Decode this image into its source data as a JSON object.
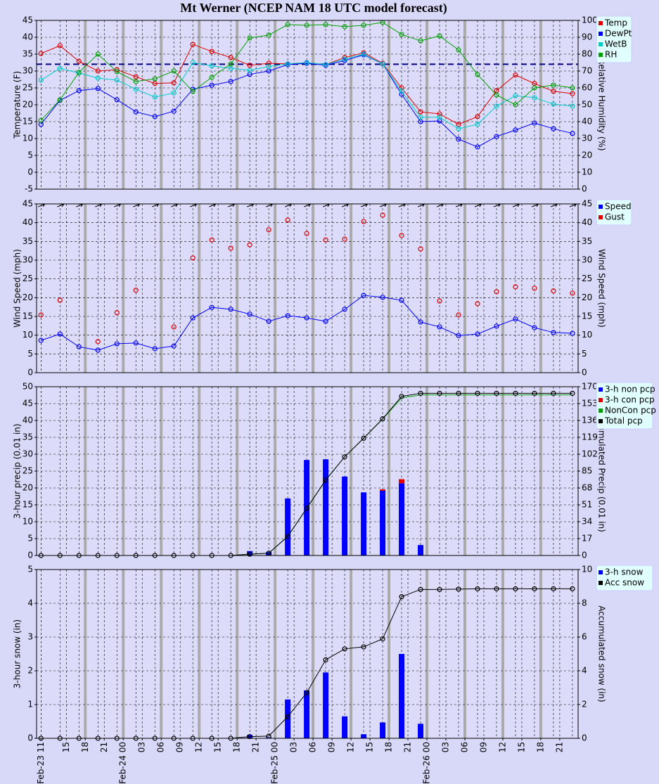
{
  "title": "Mt Werner (NCEP NAM 18 UTC model forecast)",
  "chart_data": [
    {
      "type": "line",
      "ylabel": "Temperature (F)",
      "y2label": "Relative Humidity (%)",
      "x": [
        0,
        3,
        6,
        9,
        12,
        15,
        18,
        21,
        24,
        27,
        30,
        33,
        36,
        39,
        42,
        45,
        48,
        51,
        54,
        57,
        60,
        63,
        66,
        69,
        72,
        75,
        78,
        81,
        84
      ],
      "xlim": [
        -0.7,
        84.9
      ],
      "ylim": [
        -5,
        45
      ],
      "yticks": [
        -5,
        0,
        5,
        10,
        15,
        20,
        25,
        30,
        35,
        40,
        45
      ],
      "y2lim": [
        0,
        100
      ],
      "y2ticks": [
        0,
        10,
        20,
        30,
        40,
        50,
        60,
        70,
        80,
        90,
        100
      ],
      "hline": 32,
      "hline_color": "#000080",
      "grid": true,
      "series": [
        {
          "name": "Temp",
          "color": "#e00000",
          "values": [
            35.2,
            37.5,
            32.9,
            30,
            30.4,
            28.3,
            26.3,
            26.5,
            37.9,
            35.8,
            34,
            31.7,
            32.3,
            32.1,
            32.5,
            31.9,
            34,
            35.4,
            32.3,
            25,
            17.9,
            17.3,
            14.2,
            16.5,
            24.2,
            28.8,
            26.3,
            24,
            23.3
          ]
        },
        {
          "name": "DewPt",
          "color": "#0000ff",
          "values": [
            14.2,
            21.3,
            24.2,
            24.8,
            21.5,
            17.9,
            16.5,
            18.1,
            24.6,
            25.8,
            26.9,
            29,
            30,
            31.9,
            32.3,
            31.7,
            33.1,
            34.8,
            32.1,
            23.1,
            15,
            15.2,
            9.8,
            7.5,
            10.6,
            12.5,
            14.6,
            12.9,
            11.5
          ]
        },
        {
          "name": "WetB",
          "color": "#00cccc",
          "values": [
            27.3,
            30.8,
            29.4,
            27.9,
            27.3,
            24.6,
            22.3,
            23.5,
            32.5,
            31.5,
            30.8,
            30.2,
            31.3,
            32.1,
            32.5,
            31.9,
            33.5,
            35,
            32.1,
            24,
            16.3,
            16.3,
            12.9,
            14.2,
            19.6,
            22.7,
            22.1,
            20.2,
            19.6
          ]
        },
        {
          "name": "RH",
          "color": "#00a000",
          "axis": "y2",
          "values": [
            40.8,
            52.9,
            69.2,
            80,
            69.6,
            63.8,
            65.4,
            70,
            57.9,
            66.3,
            74.2,
            89.6,
            91.3,
            97.5,
            97.1,
            97.5,
            96.3,
            97.1,
            98.8,
            91.7,
            87.9,
            90.8,
            82.5,
            67.9,
            55.8,
            50,
            60,
            61.7,
            60
          ]
        }
      ]
    },
    {
      "type": "line",
      "ylabel": "Wind Speed (mph)",
      "y2label": "Wind Speed (mph)",
      "x": [
        0,
        3,
        6,
        9,
        12,
        15,
        18,
        21,
        24,
        27,
        30,
        33,
        36,
        39,
        42,
        45,
        48,
        51,
        54,
        57,
        60,
        63,
        66,
        69,
        72,
        75,
        78,
        81,
        84
      ],
      "xlim": [
        -0.7,
        84.9
      ],
      "ylim": [
        0,
        45
      ],
      "yticks": [
        0,
        5,
        10,
        15,
        20,
        25,
        30,
        35,
        40,
        45
      ],
      "y2lim": [
        0,
        45
      ],
      "y2ticks": [
        0,
        5,
        10,
        15,
        20,
        25,
        30,
        35,
        40,
        45
      ],
      "grid": true,
      "wind_arrows": true,
      "series": [
        {
          "name": "Speed",
          "color": "#0000ff",
          "values": [
            8.6,
            10.3,
            6.9,
            6,
            7.7,
            7.9,
            6.4,
            7.1,
            14.6,
            17.4,
            16.9,
            15.6,
            13.7,
            15.2,
            14.6,
            13.7,
            16.9,
            20.6,
            20.1,
            19.3,
            13.5,
            12.2,
            9.9,
            10.3,
            12.4,
            14.3,
            12,
            10.7,
            10.5
          ]
        },
        {
          "name": "Gust",
          "color": "#e00000",
          "type": "scatter",
          "values": [
            15.4,
            19.3,
            null,
            8.3,
            16,
            22,
            null,
            12.2,
            30.6,
            35.4,
            33.2,
            34.1,
            38.1,
            40.7,
            37.1,
            35.4,
            35.6,
            40.3,
            42,
            36.6,
            33,
            19.1,
            15.4,
            18.4,
            21.6,
            22.9,
            22.5,
            21.8,
            21.2
          ]
        }
      ]
    },
    {
      "type": "bar",
      "stacked": true,
      "ylabel": "3-hour precip (0.01 in)",
      "y2label": "Accumulated Precip (0.01 in)",
      "x": [
        0,
        3,
        6,
        9,
        12,
        15,
        18,
        21,
        24,
        27,
        30,
        33,
        36,
        39,
        42,
        45,
        48,
        51,
        54,
        57,
        60,
        63,
        66,
        69,
        72,
        75,
        78,
        81,
        84
      ],
      "xlim": [
        -0.7,
        84.9
      ],
      "ylim": [
        0,
        50
      ],
      "yticks": [
        0,
        5,
        10,
        15,
        20,
        25,
        30,
        35,
        40,
        45,
        50
      ],
      "y2lim": [
        0,
        170
      ],
      "y2ticks": [
        0,
        17,
        34,
        51,
        68,
        85,
        102,
        119,
        136,
        153,
        170
      ],
      "grid": true,
      "series": [
        {
          "name": "3-h non pcp",
          "color": "#0000ff",
          "type": "bar",
          "values": [
            0,
            0,
            0,
            0,
            0,
            0,
            0,
            0,
            0,
            0,
            0,
            1.3,
            1,
            16.9,
            28.3,
            28.5,
            23.4,
            18.7,
            19.2,
            21.4,
            3.1,
            0,
            0,
            0,
            0,
            0,
            0,
            0,
            0
          ]
        },
        {
          "name": "3-h con pcp",
          "color": "#e00000",
          "type": "bar",
          "values": [
            0,
            0,
            0,
            0,
            0,
            0,
            0,
            0,
            0,
            0,
            0,
            0,
            0,
            0,
            0,
            0,
            0,
            0,
            0.4,
            1.2,
            0,
            0,
            0,
            0,
            0,
            0,
            0,
            0,
            0
          ]
        },
        {
          "name": "NonCon pcp",
          "color": "#00a000",
          "type": "line",
          "markers": false,
          "axis": "y2",
          "values": [
            0,
            0,
            0,
            0,
            0,
            0,
            0,
            0,
            0,
            0,
            0,
            1.3,
            2.3,
            19.2,
            47.5,
            76,
            99.4,
            118.1,
            137.3,
            158.7,
            161.8,
            161.8,
            161.8,
            161.8,
            161.8,
            161.8,
            161.8,
            161.8,
            161.8
          ]
        },
        {
          "name": "Total pcp",
          "color": "#000000",
          "type": "line",
          "axis": "y2",
          "values": [
            0,
            0,
            0,
            0,
            0,
            0,
            0,
            0,
            0,
            0,
            0,
            1.3,
            2.3,
            19.2,
            47.5,
            76,
            99.4,
            118.1,
            137.7,
            160.3,
            163.4,
            163.4,
            163.4,
            163.4,
            163.4,
            163.4,
            163.4,
            163.4,
            163.4
          ]
        }
      ]
    },
    {
      "type": "bar",
      "ylabel": "3-hour snow (in)",
      "y2label": "Accumulated snow (in)",
      "x": [
        0,
        3,
        6,
        9,
        12,
        15,
        18,
        21,
        24,
        27,
        30,
        33,
        36,
        39,
        42,
        45,
        48,
        51,
        54,
        57,
        60,
        63,
        66,
        69,
        72,
        75,
        78,
        81,
        84
      ],
      "xlim": [
        -0.7,
        84.9
      ],
      "ylim": [
        0,
        5
      ],
      "yticks": [
        0,
        1,
        2,
        3,
        4,
        5
      ],
      "y2lim": [
        0,
        10
      ],
      "y2ticks": [
        0,
        2,
        4,
        6,
        8,
        10
      ],
      "grid": true,
      "xticks": [
        {
          "value": 0,
          "label": "Feb-23 11"
        },
        {
          "value": 4,
          "label": "15"
        },
        {
          "value": 7,
          "label": "18"
        },
        {
          "value": 10,
          "label": "21"
        },
        {
          "value": 13,
          "label": "Feb-24 00"
        },
        {
          "value": 16,
          "label": "03"
        },
        {
          "value": 19,
          "label": "06"
        },
        {
          "value": 22,
          "label": "09"
        },
        {
          "value": 25,
          "label": "12"
        },
        {
          "value": 28,
          "label": "15"
        },
        {
          "value": 31,
          "label": "18"
        },
        {
          "value": 34,
          "label": "21"
        },
        {
          "value": 37,
          "label": "Feb-25 00"
        },
        {
          "value": 40,
          "label": "03"
        },
        {
          "value": 43,
          "label": "06"
        },
        {
          "value": 46,
          "label": "09"
        },
        {
          "value": 49,
          "label": "12"
        },
        {
          "value": 52,
          "label": "15"
        },
        {
          "value": 55,
          "label": "18"
        },
        {
          "value": 58,
          "label": "21"
        },
        {
          "value": 61,
          "label": "Feb-26 00"
        },
        {
          "value": 64,
          "label": "03"
        },
        {
          "value": 67,
          "label": "06"
        },
        {
          "value": 70,
          "label": "09"
        },
        {
          "value": 73,
          "label": "12"
        },
        {
          "value": 76,
          "label": "15"
        },
        {
          "value": 79,
          "label": "18"
        },
        {
          "value": 82,
          "label": "21"
        }
      ],
      "series": [
        {
          "name": "3-h snow",
          "color": "#0000ff",
          "type": "bar",
          "values": [
            0,
            0,
            0,
            0,
            0,
            0,
            0,
            0,
            0,
            0,
            0,
            0.1,
            0.03,
            1.15,
            1.42,
            1.95,
            0.65,
            0.12,
            0.47,
            2.5,
            0.43,
            0,
            0.01,
            0.01,
            0,
            0,
            0,
            0,
            0
          ]
        },
        {
          "name": "Acc snow",
          "color": "#000000",
          "type": "line",
          "axis": "y2",
          "values": [
            0,
            0,
            0,
            0,
            0,
            0,
            0,
            0,
            0,
            0,
            0,
            0.1,
            0.13,
            1.28,
            2.7,
            4.65,
            5.3,
            5.42,
            5.89,
            8.39,
            8.82,
            8.82,
            8.84,
            8.86,
            8.86,
            8.86,
            8.86,
            8.86,
            8.86
          ]
        }
      ]
    }
  ]
}
